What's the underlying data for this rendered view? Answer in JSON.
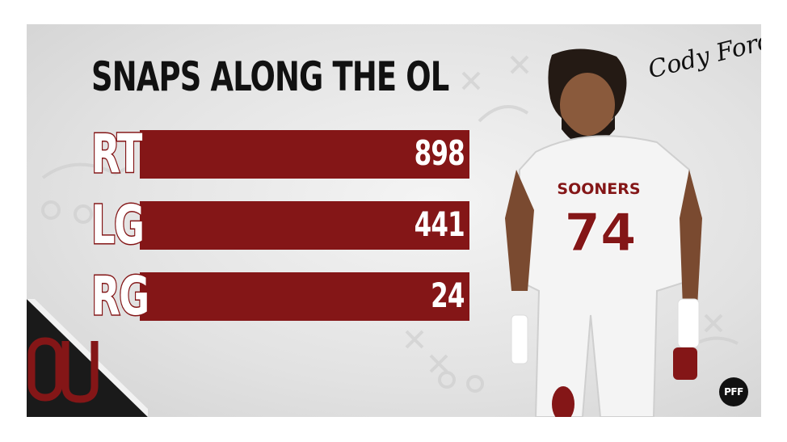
{
  "chart_data": {
    "type": "bar",
    "orientation": "horizontal",
    "title": "SNAPS ALONG THE OL",
    "categories": [
      "RT",
      "LG",
      "RG"
    ],
    "values": [
      898,
      441,
      24
    ],
    "value_labels": [
      "898",
      "441",
      "24"
    ],
    "bar_color": "#841617",
    "label_color": "#ffffff"
  },
  "branding": {
    "signature": "Cody Ford",
    "pff_logo": "PFF",
    "team_logo": "OU",
    "jersey_text": "SOONERS",
    "jersey_number": "74"
  },
  "colors": {
    "crimson": "#841617",
    "background": "#e6e6e6",
    "title": "#111111"
  },
  "icons": {
    "team_logo": "ou-logo-icon",
    "pff": "pff-logo-icon",
    "player": "player-photo"
  }
}
